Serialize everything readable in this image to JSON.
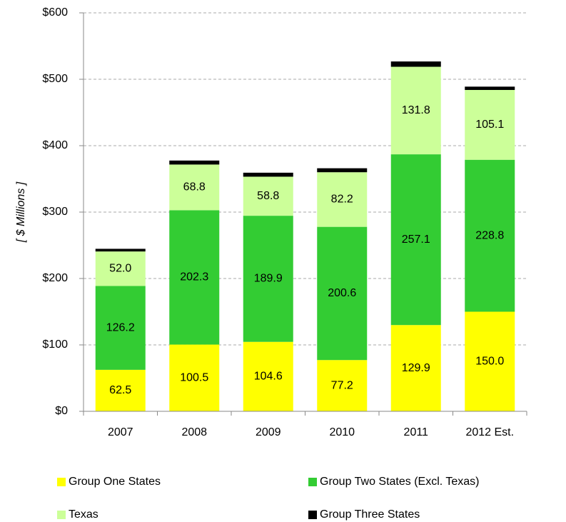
{
  "chart_data": {
    "type": "stacked_bar",
    "y_label": "[ $ Millions ]",
    "categories": [
      "2007",
      "2008",
      "2009",
      "2010",
      "2011",
      "2012 Est."
    ],
    "series": [
      {
        "name": "Group One States",
        "color": "#ffff00",
        "values": [
          62.5,
          100.5,
          104.6,
          77.2,
          129.9,
          150.0
        ],
        "value_labels": [
          "62.5",
          "100.5",
          "104.6",
          "77.2",
          "129.9",
          "150.0"
        ]
      },
      {
        "name": "Group Two States (Excl. Texas)",
        "color": "#33cc33",
        "values": [
          126.2,
          202.3,
          189.9,
          200.6,
          257.1,
          228.8
        ],
        "value_labels": [
          "126.2",
          "202.3",
          "189.9",
          "200.6",
          "257.1",
          "228.8"
        ]
      },
      {
        "name": "Texas",
        "color": "#ccff99",
        "values": [
          52.0,
          68.8,
          58.8,
          82.2,
          131.8,
          105.1
        ],
        "value_labels": [
          "52.0",
          "68.8",
          "58.8",
          "82.2",
          "131.8",
          "105.1"
        ]
      },
      {
        "name": "Group Three States",
        "color": "#000000",
        "values": [
          4,
          6,
          6,
          6,
          8,
          5
        ]
      }
    ],
    "ylim": [
      0,
      600
    ],
    "yticks": [
      {
        "value": 0,
        "label": "$0"
      },
      {
        "value": 100,
        "label": "$100"
      },
      {
        "value": 200,
        "label": "$200"
      },
      {
        "value": 300,
        "label": "$300"
      },
      {
        "value": 400,
        "label": "$400"
      },
      {
        "value": 500,
        "label": "$500"
      },
      {
        "value": 600,
        "label": "$600"
      }
    ],
    "grid": true
  }
}
